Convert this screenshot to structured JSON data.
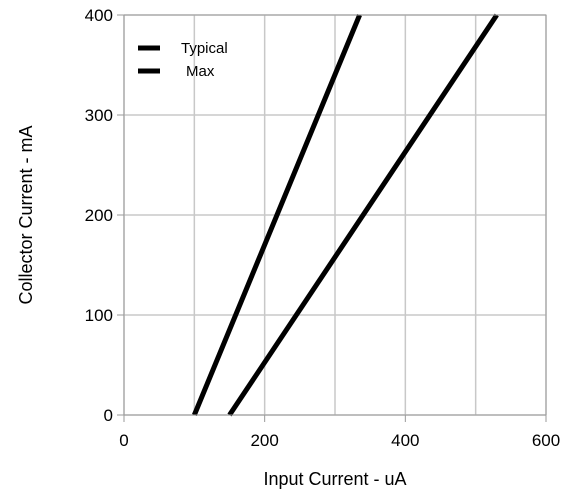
{
  "chart_data": {
    "type": "line",
    "xlabel": "Input Current - uA",
    "ylabel": "Collector Current - mA",
    "xlim": [
      0,
      600
    ],
    "ylim": [
      0,
      400
    ],
    "xticks": [
      0,
      200,
      400,
      600
    ],
    "yticks": [
      0,
      100,
      200,
      300,
      400
    ],
    "grid": true,
    "legend_position": "top-left",
    "series": [
      {
        "name": "Typical",
        "color": "#000000",
        "x": [
          100,
          335
        ],
        "y": [
          0,
          400
        ]
      },
      {
        "name": "Max",
        "color": "#000000",
        "x": [
          150,
          530
        ],
        "y": [
          0,
          400
        ]
      }
    ]
  }
}
